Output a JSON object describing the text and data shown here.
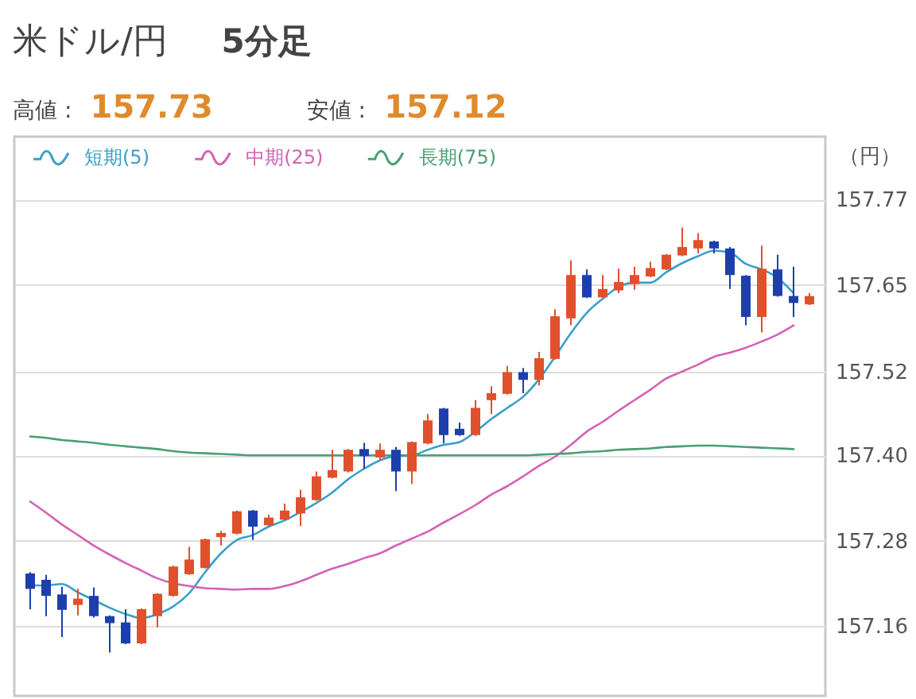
{
  "chart_data": {
    "type": "candlestick",
    "title": "米ドル/円",
    "subtitle": "5分足",
    "ylabel": "（円）",
    "annotations": [
      "高値 :",
      "157.73",
      "安値 :",
      "157.12"
    ],
    "categories": [
      null,
      null,
      null,
      null,
      null,
      null,
      null,
      null,
      null,
      null,
      null,
      null,
      null,
      null,
      null,
      null,
      null,
      null,
      null,
      null,
      null,
      null,
      null,
      null,
      null,
      null,
      null,
      null,
      null,
      null,
      null,
      null,
      null,
      null,
      null,
      null,
      null,
      null,
      null,
      null,
      null,
      null,
      null,
      null,
      null,
      null,
      null,
      null,
      null,
      null
    ],
    "ohlc": [
      [
        157.235,
        157.237,
        157.184,
        157.213
      ],
      [
        157.226,
        157.233,
        157.174,
        157.203
      ],
      [
        157.205,
        157.216,
        157.144,
        157.183
      ],
      [
        157.19,
        157.213,
        157.175,
        157.199
      ],
      [
        157.203,
        157.215,
        157.172,
        157.174
      ],
      [
        157.174,
        157.175,
        157.122,
        157.164
      ],
      [
        157.165,
        157.184,
        157.134,
        157.135
      ],
      [
        157.135,
        157.185,
        157.134,
        157.184
      ],
      [
        157.174,
        157.207,
        157.158,
        157.206
      ],
      [
        157.203,
        157.246,
        157.202,
        157.245
      ],
      [
        157.234,
        157.273,
        157.233,
        157.255
      ],
      [
        157.243,
        157.285,
        157.242,
        157.284
      ],
      [
        157.287,
        157.296,
        157.275,
        157.293
      ],
      [
        157.292,
        157.325,
        157.291,
        157.324
      ],
      [
        157.325,
        157.326,
        157.283,
        157.302
      ],
      [
        157.304,
        157.319,
        157.303,
        157.315
      ],
      [
        157.312,
        157.335,
        157.311,
        157.325
      ],
      [
        157.321,
        157.355,
        157.303,
        157.344
      ],
      [
        157.34,
        157.381,
        157.339,
        157.374
      ],
      [
        157.372,
        157.412,
        157.371,
        157.383
      ],
      [
        157.381,
        157.413,
        157.38,
        157.412
      ],
      [
        157.413,
        157.422,
        157.385,
        157.403
      ],
      [
        157.401,
        157.421,
        157.397,
        157.412
      ],
      [
        157.412,
        157.416,
        157.353,
        157.381
      ],
      [
        157.381,
        157.424,
        157.363,
        157.423
      ],
      [
        157.421,
        157.463,
        157.42,
        157.454
      ],
      [
        157.471,
        157.472,
        157.421,
        157.433
      ],
      [
        157.442,
        157.451,
        157.432,
        157.433
      ],
      [
        157.433,
        157.483,
        157.432,
        157.472
      ],
      [
        157.483,
        157.503,
        157.463,
        157.493
      ],
      [
        157.492,
        157.532,
        157.491,
        157.523
      ],
      [
        157.523,
        157.529,
        157.493,
        157.512
      ],
      [
        157.512,
        157.552,
        157.504,
        157.543
      ],
      [
        157.542,
        157.613,
        157.541,
        157.603
      ],
      [
        157.6,
        157.683,
        157.59,
        157.662
      ],
      [
        157.662,
        157.67,
        157.629,
        157.63
      ],
      [
        157.63,
        157.662,
        157.629,
        157.642
      ],
      [
        157.64,
        157.671,
        157.636,
        157.652
      ],
      [
        157.649,
        157.674,
        157.641,
        157.662
      ],
      [
        157.66,
        157.681,
        157.659,
        157.672
      ],
      [
        157.67,
        157.692,
        157.669,
        157.691
      ],
      [
        157.69,
        157.73,
        157.689,
        157.702
      ],
      [
        157.7,
        157.722,
        157.693,
        157.712
      ],
      [
        157.71,
        157.711,
        157.693,
        157.7
      ],
      [
        157.7,
        157.702,
        157.642,
        157.662
      ],
      [
        157.661,
        157.662,
        157.59,
        157.602
      ],
      [
        157.602,
        157.704,
        157.58,
        157.671
      ],
      [
        157.67,
        157.691,
        157.631,
        157.632
      ],
      [
        157.632,
        157.674,
        157.602,
        157.622
      ],
      [
        157.62,
        157.636,
        157.619,
        157.632
      ]
    ],
    "colors": [
      "#1d3fae",
      "#1d3fae",
      "#1d3fae",
      "#e0502c",
      "#1d3fae",
      "#1d3fae",
      "#1d3fae",
      "#e0502c",
      "#e0502c",
      "#e0502c",
      "#e0502c",
      "#e0502c",
      "#e0502c",
      "#e0502c",
      "#1d3fae",
      "#e0502c",
      "#e0502c",
      "#e0502c",
      "#e0502c",
      "#e0502c",
      "#e0502c",
      "#1d3fae",
      "#e0502c",
      "#1d3fae",
      "#e0502c",
      "#e0502c",
      "#1d3fae",
      "#1d3fae",
      "#e0502c",
      "#e0502c",
      "#e0502c",
      "#1d3fae",
      "#e0502c",
      "#e0502c",
      "#e0502c",
      "#1d3fae",
      "#e0502c",
      "#e0502c",
      "#e0502c",
      "#e0502c",
      "#e0502c",
      "#e0502c",
      "#e0502c",
      "#1d3fae",
      "#1d3fae",
      "#1d3fae",
      "#e0502c",
      "#1d3fae",
      "#1d3fae",
      "#e0502c"
    ],
    "series": [
      {
        "name": "短期(5)",
        "type": "line",
        "color": "#3a9fc8",
        "values": [
          157.218,
          157.218,
          157.22,
          157.208,
          157.197,
          157.186,
          157.177,
          157.171,
          157.177,
          157.188,
          157.207,
          157.237,
          157.264,
          157.283,
          157.29,
          157.302,
          157.311,
          157.323,
          157.336,
          157.351,
          157.37,
          157.385,
          157.397,
          157.403,
          157.404,
          157.412,
          157.419,
          157.423,
          157.438,
          157.456,
          157.472,
          157.488,
          157.513,
          157.545,
          157.579,
          157.608,
          157.628,
          157.645,
          157.651,
          157.651,
          157.666,
          157.679,
          157.689,
          157.697,
          157.694,
          157.678,
          157.67,
          157.658,
          157.636,
          null
        ]
      },
      {
        "name": "中期(25)",
        "type": "line",
        "color": "#d462b4",
        "values": [
          157.338,
          157.322,
          157.305,
          157.29,
          157.275,
          157.262,
          157.25,
          157.239,
          157.228,
          157.221,
          157.217,
          157.214,
          157.213,
          157.212,
          157.213,
          157.213,
          157.217,
          157.224,
          157.233,
          157.242,
          157.249,
          157.257,
          157.264,
          157.275,
          157.285,
          157.295,
          157.308,
          157.32,
          157.333,
          157.348,
          157.36,
          157.374,
          157.389,
          157.402,
          157.419,
          157.438,
          157.452,
          157.468,
          157.483,
          157.498,
          157.514,
          157.524,
          157.534,
          157.545,
          157.551,
          157.558,
          157.567,
          157.577,
          157.59,
          null
        ]
      },
      {
        "name": "長期(75)",
        "type": "line",
        "color": "#4a9e72",
        "values": [
          157.431,
          157.429,
          157.426,
          157.424,
          157.422,
          157.419,
          157.417,
          157.415,
          157.413,
          157.41,
          157.408,
          157.407,
          157.406,
          157.405,
          157.404,
          157.404,
          157.404,
          157.404,
          157.404,
          157.404,
          157.404,
          157.404,
          157.404,
          157.404,
          157.404,
          157.404,
          157.404,
          157.404,
          157.404,
          157.404,
          157.404,
          157.404,
          157.405,
          157.406,
          157.407,
          157.409,
          157.41,
          157.412,
          157.413,
          157.414,
          157.416,
          157.417,
          157.418,
          157.418,
          157.417,
          157.416,
          157.415,
          157.414,
          157.413,
          null
        ]
      }
    ],
    "ylim": [
      157.06,
      157.86
    ],
    "yticks": [
      157.16,
      {
        "value": 157.282,
        "label": "157.28"
      },
      {
        "value": 157.404,
        "label": "157.40"
      },
      {
        "value": 157.524,
        "label": "157.52"
      },
      {
        "value": 157.648,
        "label": "157.65"
      },
      157.77
    ],
    "grid": "y",
    "legend": "top left"
  }
}
